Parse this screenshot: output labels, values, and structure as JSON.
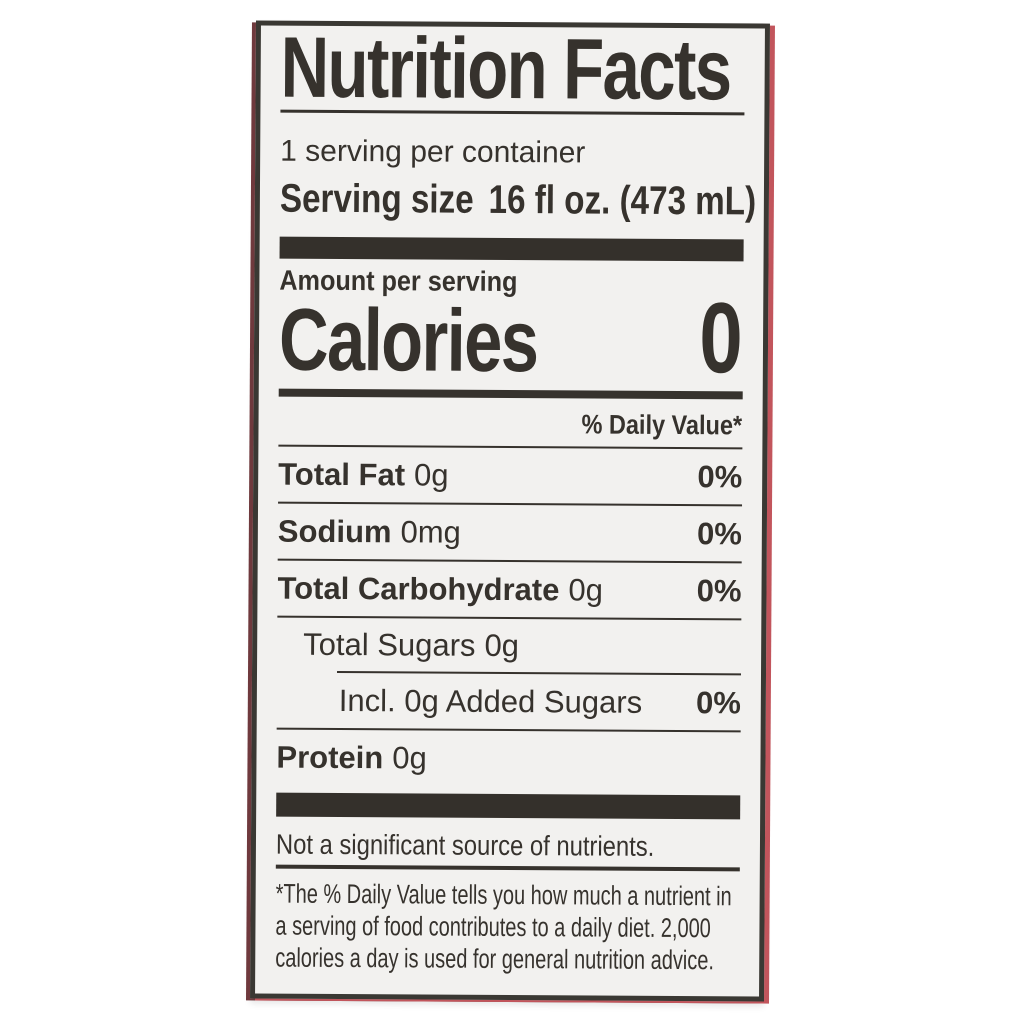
{
  "colors": {
    "page_background": "#ffffff",
    "label_background": "#f2f1ef",
    "ink": "#36322d",
    "section_bar": "#34302b",
    "edge_red_right": "#c2555c",
    "edge_red_left": "#6f393d"
  },
  "nutrition": {
    "title": "Nutrition Facts",
    "servings_per_container": "1 serving per container",
    "serving_size": {
      "label": "Serving size",
      "value": "16 fl oz. (473 mL)"
    },
    "amount_per_serving": "Amount per serving",
    "calories": {
      "label": "Calories",
      "value": "0"
    },
    "daily_value_header": "% Daily Value*",
    "rows": [
      {
        "name": "Total Fat",
        "amount": "0g",
        "daily_value": "0%"
      },
      {
        "name": "Sodium",
        "amount": "0mg",
        "daily_value": "0%"
      },
      {
        "name": "Total Carbohydrate",
        "amount": "0g",
        "daily_value": "0%"
      },
      {
        "name": "Total Sugars",
        "amount": "0g",
        "daily_value": ""
      },
      {
        "name": "Incl. 0g Added Sugars",
        "amount": "",
        "daily_value": "0%"
      },
      {
        "name": "Protein",
        "amount": "0g",
        "daily_value": ""
      }
    ],
    "not_significant_note": "Not a significant source of nutrients.",
    "footnote_lines": [
      "*The % Daily Value tells you how much a nutrient in",
      "a serving of food contributes to a daily diet. 2,000",
      "calories a day is used for general nutrition advice."
    ]
  }
}
